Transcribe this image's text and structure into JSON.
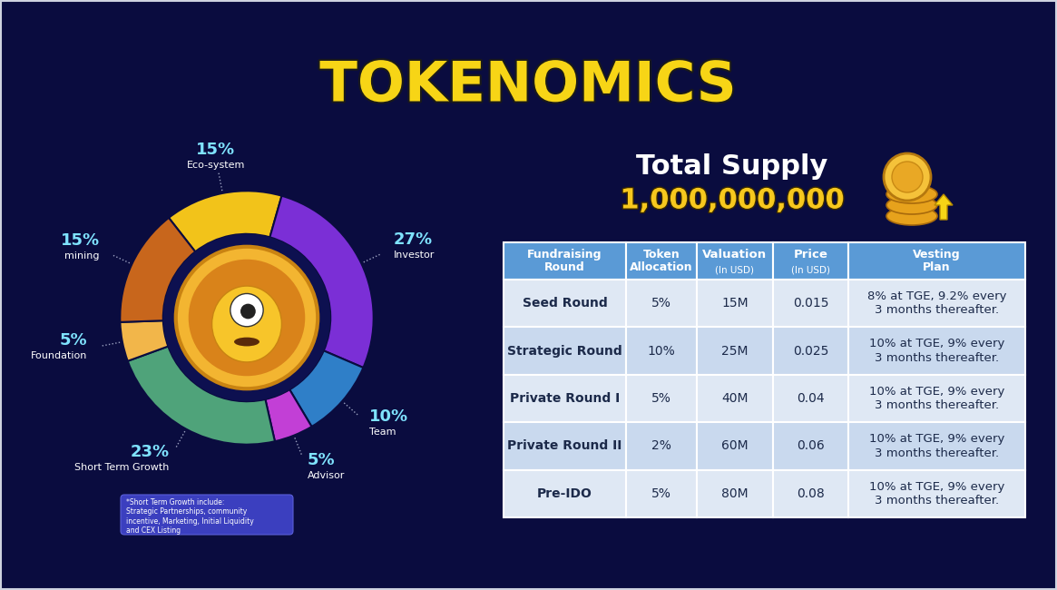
{
  "title": "TOKENOMICS",
  "chart_data": {
    "type": "pie",
    "categories": [
      "Eco-system",
      "Investor",
      "Team",
      "Advisor",
      "Short Term Growth",
      "Foundation",
      "mining"
    ],
    "values": [
      15,
      27,
      10,
      5,
      23,
      5,
      15
    ],
    "value_labels": [
      "15%",
      "27%",
      "10%",
      "5%",
      "23%",
      "5%",
      "15%"
    ],
    "colors": [
      "#f2c31a",
      "#7b2fd6",
      "#2f7fc8",
      "#c23fd6",
      "#4fa37a",
      "#f2b64a",
      "#c8661c"
    ],
    "data_labels": true
  },
  "note": {
    "heading": "*Short Term Growth include:",
    "text": "Strategic Partnerships, community incentive, Marketing, Initial Liquidity and CEX Listing"
  },
  "supply": {
    "label": "Total Supply",
    "value": "1,000,000,000"
  },
  "table": {
    "header": [
      {
        "text": "Fundraising Round"
      },
      {
        "text": "Token Allocation"
      },
      {
        "text": "Valuation",
        "unit": "(In USD)"
      },
      {
        "text": "Price",
        "unit": "(In USD)"
      },
      {
        "text": "Vesting Plan"
      }
    ],
    "rows": [
      [
        "Seed Round",
        "5%",
        "15M",
        "0.015",
        "8% at TGE, 9.2% every 3 months thereafter."
      ],
      [
        "Strategic Round",
        "10%",
        "25M",
        "0.025",
        "10% at TGE, 9% every 3 months thereafter."
      ],
      [
        "Private Round I",
        "5%",
        "40M",
        "0.04",
        "10% at TGE, 9% every 3 months thereafter."
      ],
      [
        "Private Round II",
        "2%",
        "60M",
        "0.06",
        "10% at TGE, 9% every 3 months thereafter."
      ],
      [
        "Pre-IDO",
        "5%",
        "80M",
        "0.08",
        "10% at TGE, 9% every 3 months thereafter."
      ]
    ]
  }
}
